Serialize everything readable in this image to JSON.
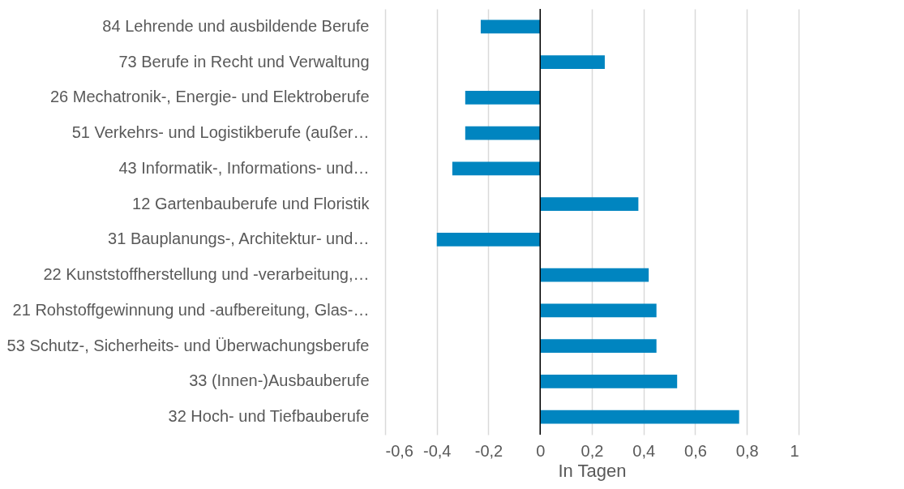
{
  "chart_data": {
    "type": "bar",
    "orientation": "horizontal",
    "xlabel": "In Tagen",
    "categories": [
      "84 Lehrende und ausbildende Berufe",
      "73 Berufe in Recht und Verwaltung",
      "26 Mechatronik-, Energie- und Elektroberufe",
      "51 Verkehrs- und Logistikberufe (außer…",
      "43 Informatik-, Informations- und…",
      "12 Gartenbauberufe und Floristik",
      "31 Bauplanungs-, Architektur- und…",
      "22 Kunststoffherstellung und -verarbeitung,…",
      "21 Rohstoffgewinnung und -aufbereitung, Glas-…",
      "53 Schutz-, Sicherheits- und Überwachungsberufe",
      "33 (Innen-)Ausbauberufe",
      "32 Hoch- und Tiefbauberufe"
    ],
    "values": [
      -0.23,
      0.25,
      -0.29,
      -0.29,
      -0.34,
      0.38,
      -0.4,
      0.42,
      0.45,
      0.45,
      0.53,
      0.77
    ],
    "color": "#0085c0",
    "xlim": [
      -0.6,
      1
    ],
    "xticks": [
      {
        "value": -0.6,
        "label": "-0,6"
      },
      {
        "value": -0.4,
        "label": "-0,4"
      },
      {
        "value": -0.2,
        "label": "-0,2"
      },
      0,
      {
        "value": 0.2,
        "label": "0,2"
      },
      {
        "value": 0.4,
        "label": "0,4"
      },
      {
        "value": 0.6,
        "label": "0,6"
      },
      {
        "value": 0.8,
        "label": "0,8"
      },
      1
    ],
    "grid": "x",
    "ref_lines": [
      {
        "axis": "x",
        "value": 0,
        "color": "#000000"
      }
    ]
  }
}
